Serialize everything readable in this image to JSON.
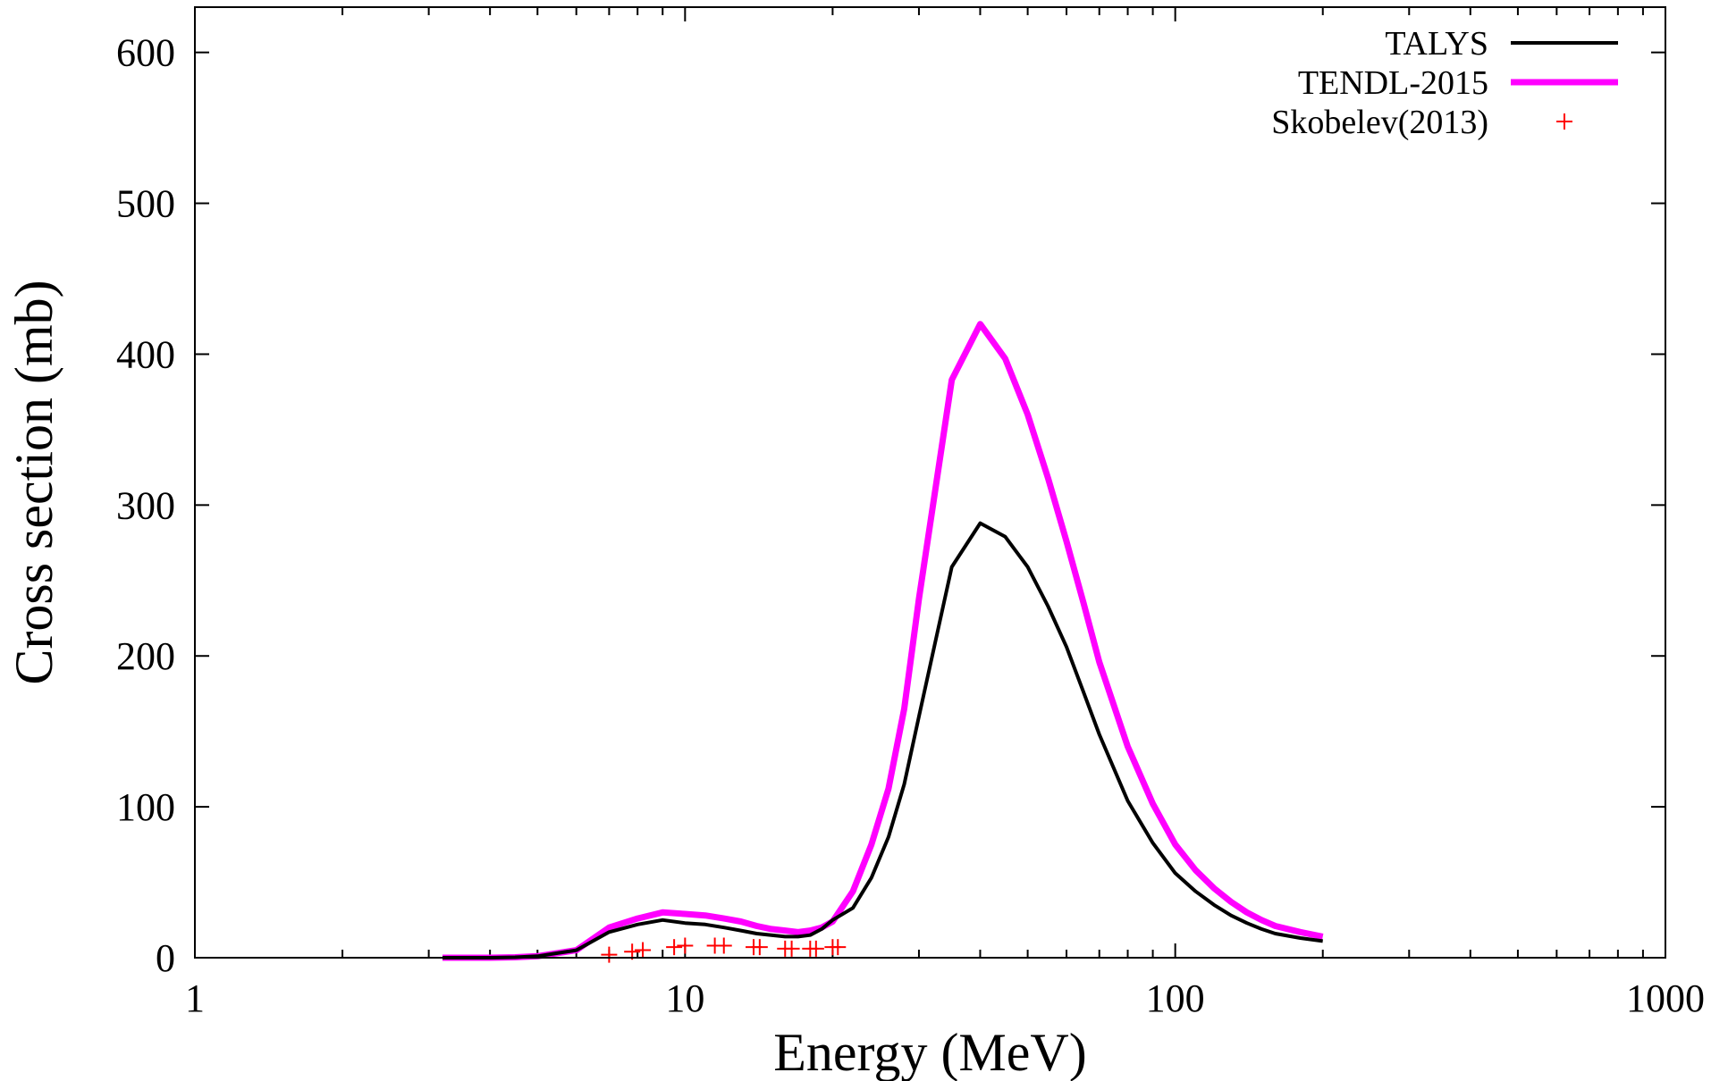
{
  "chart_data": {
    "type": "line",
    "xlabel": "Energy (MeV)",
    "ylabel": "Cross section (mb)",
    "xscale": "log",
    "xlim": [
      1,
      1000
    ],
    "ylim": [
      0,
      630
    ],
    "xticks": [
      1,
      10,
      100,
      1000
    ],
    "xtick_labels": [
      "1",
      "10",
      "100",
      "1000"
    ],
    "yticks": [
      0,
      100,
      200,
      300,
      400,
      500,
      600
    ],
    "ytick_labels": [
      "0",
      "100",
      "200",
      "300",
      "400",
      "500",
      "600"
    ],
    "grid": false,
    "legend_position": "top-right",
    "series": [
      {
        "name": "TALYS",
        "style": "line",
        "color": "#000000",
        "x": [
          3.2,
          3.6,
          4,
          4.5,
          5,
          6,
          7,
          8,
          9,
          10,
          11,
          12,
          13,
          14,
          15,
          16,
          17,
          18,
          19,
          20,
          22,
          24,
          26,
          28,
          30,
          35,
          40,
          45,
          50,
          55,
          60,
          65,
          70,
          80,
          90,
          100,
          110,
          120,
          130,
          140,
          150,
          160,
          180,
          200
        ],
        "y": [
          0,
          0,
          0,
          0.3,
          1,
          5,
          17,
          22,
          25,
          23,
          22,
          20,
          18,
          16,
          15,
          14,
          14,
          15,
          19,
          25,
          33,
          53,
          80,
          115,
          160,
          259,
          288,
          279,
          259,
          233,
          206,
          176,
          148,
          104,
          76,
          56,
          44,
          35,
          28,
          23,
          19,
          16,
          13,
          11
        ]
      },
      {
        "name": "TENDL-2015",
        "style": "line",
        "color": "#ff00ff",
        "x": [
          3.2,
          3.6,
          4,
          4.5,
          5,
          6,
          7,
          8,
          9,
          10,
          11,
          12,
          13,
          14,
          15,
          16,
          17,
          18,
          19,
          20,
          22,
          24,
          26,
          28,
          30,
          35,
          40,
          45,
          50,
          55,
          60,
          65,
          70,
          80,
          90,
          100,
          110,
          120,
          130,
          140,
          150,
          160,
          180,
          200
        ],
        "y": [
          0,
          0,
          0,
          0.3,
          1,
          5,
          20,
          26,
          30,
          29,
          28,
          26,
          24,
          21,
          19,
          18,
          17,
          18,
          20,
          24,
          44,
          75,
          112,
          165,
          238,
          383,
          420,
          397,
          360,
          318,
          276,
          235,
          196,
          140,
          102,
          75,
          58,
          46,
          37,
          30,
          25,
          21,
          17,
          14
        ]
      },
      {
        "name": "Skobelev(2013)",
        "style": "points",
        "color": "#ff0000",
        "x": [
          7.0,
          7.8,
          8.2,
          9.5,
          10.0,
          11.5,
          12.0,
          13.8,
          14.2,
          16.0,
          16.5,
          18.0,
          18.5,
          20.0,
          20.5
        ],
        "y": [
          2,
          4,
          5,
          7,
          8,
          8,
          8,
          7,
          7,
          6,
          6,
          6,
          6,
          7,
          7
        ]
      }
    ]
  }
}
